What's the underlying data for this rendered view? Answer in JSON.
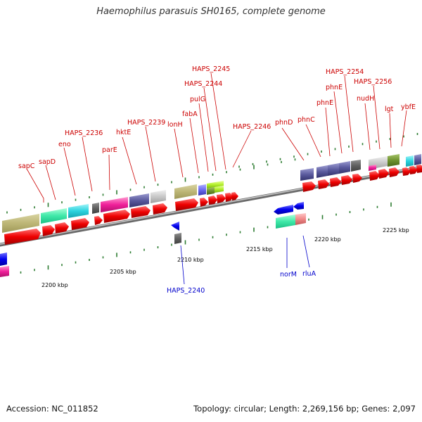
{
  "title": "Haemophilus parasuis SH0165, complete genome",
  "footer": {
    "accession_label": "Accession: NC_011852",
    "summary": "Topology: circular; Length: 2,269,156 bp; Genes: 2,097"
  },
  "colors": {
    "backbone": "#8c8c8c",
    "tick": "#2e7d32",
    "forward_label": "#cc0000",
    "reverse_label": "#0000cc",
    "cds_forward": "#ee0000",
    "cds_reverse": "#0000ee"
  },
  "ticks": [
    {
      "label": "2200 kbp"
    },
    {
      "label": "2205 kbp"
    },
    {
      "label": "2210 kbp"
    },
    {
      "label": "2215 kbp"
    },
    {
      "label": "2220 kbp"
    },
    {
      "label": "2225 kbp"
    }
  ],
  "forward_labels": [
    "sapC",
    "sapD",
    "eno",
    "HAPS_2236",
    "parE",
    "hktE",
    "HAPS_2239",
    "lonH",
    "fabA",
    "pulG",
    "HAPS_2244",
    "HAPS_2245",
    "HAPS_2246",
    "phnD",
    "phnC",
    "phnE",
    "phnE",
    "HAPS_2254",
    "nudH",
    "HAPS_2256",
    "lgt",
    "ybfE"
  ],
  "reverse_labels": [
    "HAPS_2240",
    "norM",
    "rluA"
  ]
}
